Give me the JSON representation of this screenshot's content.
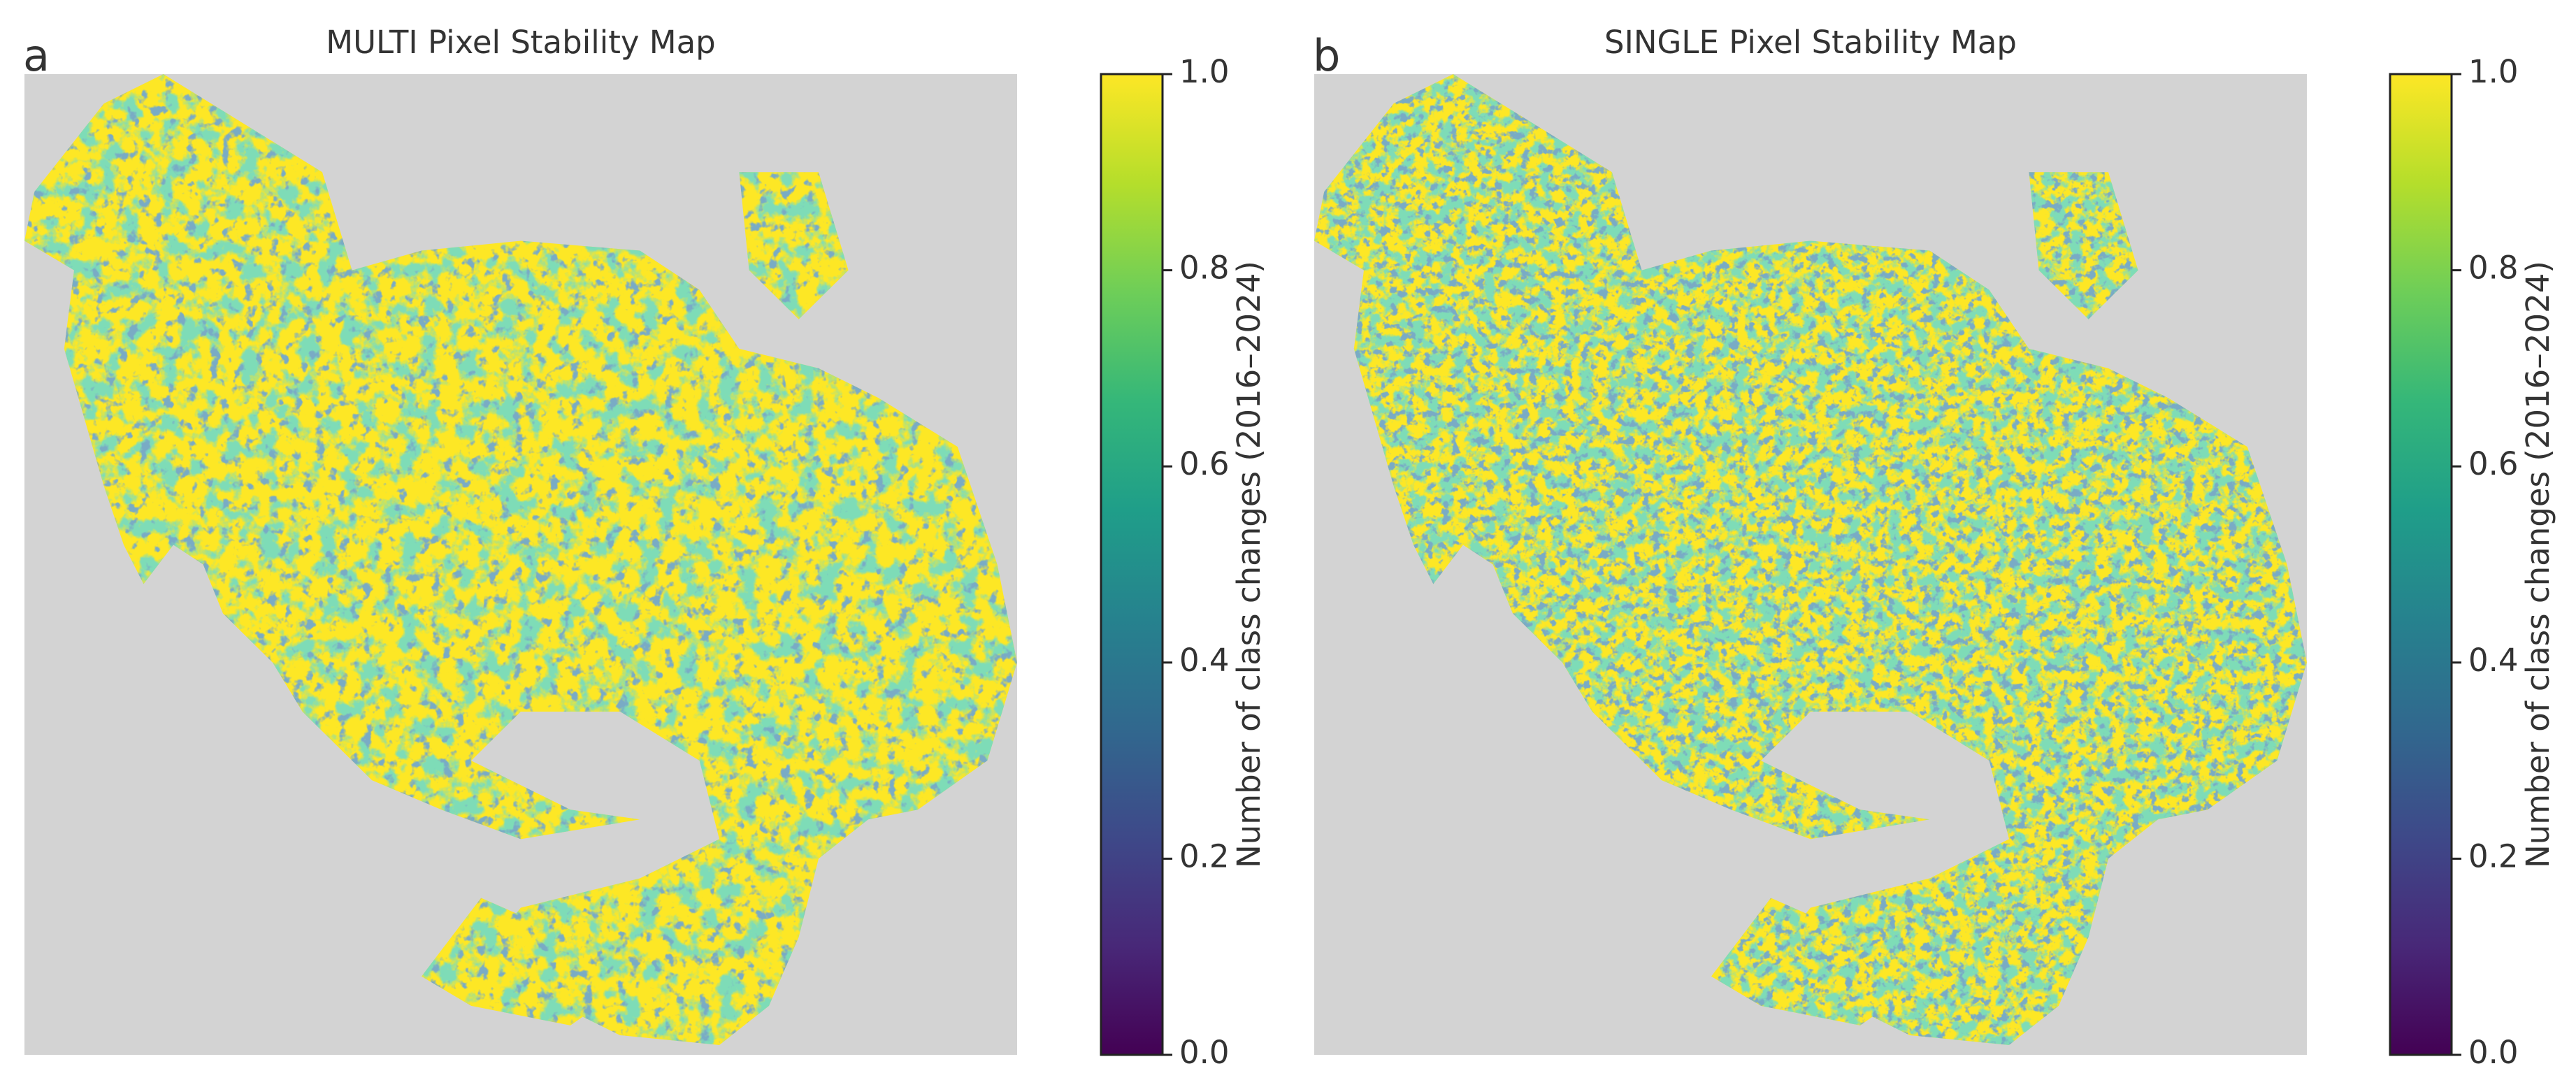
{
  "chart_data": [
    {
      "type": "heatmap",
      "panel_label": "a",
      "title": "MULTI Pixel Stability Map",
      "colorbar_label": "Number of class changes (2016–2024)",
      "cmap": "viridis",
      "clim": [
        0,
        1
      ],
      "cticks": [
        {
          "value": 0,
          "label": "0.0"
        },
        0.2,
        0.4,
        0.6,
        0.8,
        {
          "value": 1,
          "label": "1.0"
        }
      ]
    },
    {
      "type": "heatmap",
      "panel_label": "b",
      "title": "SINGLE Pixel Stability Map",
      "colorbar_label": "Number of class changes (2016–2024)",
      "cmap": "viridis",
      "clim": [
        0,
        1
      ],
      "cticks": [
        {
          "value": 0,
          "label": "0.0"
        },
        0.2,
        0.4,
        0.6,
        0.8,
        {
          "value": 1,
          "label": "1.0"
        }
      ]
    }
  ]
}
